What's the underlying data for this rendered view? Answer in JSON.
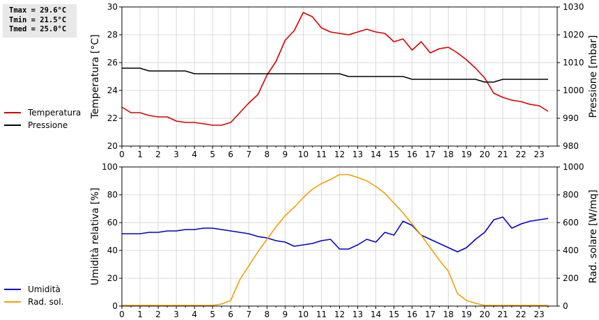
{
  "stats": {
    "tmax": "Tmax = 29.6°C",
    "tmin": "Tmin = 21.5°C",
    "tmed": "Tmed = 25.0°C"
  },
  "colors": {
    "temperature": "#d40000",
    "pressure": "#000000",
    "humidity": "#0000c8",
    "radiation": "#f0a000",
    "grid": "#d8d8d8"
  },
  "chart_data": [
    {
      "type": "line",
      "xlabel": "",
      "x_ticks": [
        "0",
        "1",
        "2",
        "3",
        "4",
        "5",
        "6",
        "7",
        "8",
        "9",
        "10",
        "11",
        "12",
        "13",
        "14",
        "15",
        "16",
        "17",
        "18",
        "19",
        "20",
        "21",
        "22",
        "23"
      ],
      "xlim": [
        0,
        24
      ],
      "y_left": {
        "label": "Temperatura [°C]",
        "lim": [
          20,
          30
        ],
        "ticks": [
          "20",
          "22",
          "24",
          "26",
          "28",
          "30"
        ]
      },
      "y_right": {
        "label": "Pressione [mbar]",
        "lim": [
          980,
          1030
        ],
        "ticks": [
          "980",
          "990",
          "1000",
          "1010",
          "1020",
          "1030"
        ]
      },
      "grid": true,
      "legend_position": "left",
      "series": [
        {
          "name": "Temperatura",
          "axis": "left",
          "color": "#d40000",
          "x": [
            0,
            0.5,
            1,
            1.5,
            2,
            2.5,
            3,
            3.5,
            4,
            4.5,
            5,
            5.5,
            6,
            6.5,
            7,
            7.5,
            8,
            8.5,
            9,
            9.5,
            10,
            10.5,
            11,
            11.5,
            12,
            12.5,
            13,
            13.5,
            14,
            14.5,
            15,
            15.5,
            16,
            16.5,
            17,
            17.5,
            18,
            18.5,
            19,
            19.5,
            20,
            20.5,
            21,
            21.5,
            22,
            22.5,
            23,
            23.5
          ],
          "y": [
            22.8,
            22.4,
            22.4,
            22.2,
            22.1,
            22.1,
            21.8,
            21.7,
            21.7,
            21.6,
            21.5,
            21.5,
            21.7,
            22.4,
            23.1,
            23.7,
            25.1,
            26.1,
            27.6,
            28.3,
            29.6,
            29.3,
            28.5,
            28.2,
            28.1,
            28.0,
            28.2,
            28.4,
            28.2,
            28.1,
            27.5,
            27.7,
            26.9,
            27.5,
            26.7,
            27.0,
            27.1,
            26.7,
            26.2,
            25.6,
            24.9,
            23.8,
            23.5,
            23.3,
            23.2,
            23.0,
            22.9,
            22.5
          ]
        },
        {
          "name": "Pressione",
          "axis": "right",
          "color": "#000000",
          "x": [
            0,
            1,
            1.5,
            2,
            3,
            3.5,
            4,
            5,
            6,
            7,
            8,
            9,
            10,
            11,
            12,
            12.5,
            13,
            14,
            15,
            15.5,
            16,
            17,
            18,
            19,
            19.5,
            20,
            20.5,
            21,
            22,
            23,
            23.5
          ],
          "y": [
            1008,
            1008,
            1007,
            1007,
            1007,
            1007,
            1006,
            1006,
            1006,
            1006,
            1006,
            1006,
            1006,
            1006,
            1006,
            1005,
            1005,
            1005,
            1005,
            1005,
            1004,
            1004,
            1004,
            1004,
            1004,
            1003,
            1003,
            1004,
            1004,
            1004,
            1004
          ]
        }
      ]
    },
    {
      "type": "line",
      "xlabel": "",
      "x_ticks": [
        "0",
        "1",
        "2",
        "3",
        "4",
        "5",
        "6",
        "7",
        "8",
        "9",
        "10",
        "11",
        "12",
        "13",
        "14",
        "15",
        "16",
        "17",
        "18",
        "19",
        "20",
        "21",
        "22",
        "23"
      ],
      "xlim": [
        0,
        24
      ],
      "y_left": {
        "label": "Umidità relativa [%]",
        "lim": [
          0,
          100
        ],
        "ticks": [
          "0",
          "20",
          "40",
          "60",
          "80",
          "100"
        ]
      },
      "y_right": {
        "label": "Rad. solare [W/mq]",
        "lim": [
          0,
          1000
        ],
        "ticks": [
          "0",
          "200",
          "400",
          "600",
          "800",
          "1000"
        ]
      },
      "grid": true,
      "legend_position": "left",
      "series": [
        {
          "name": "Umidità",
          "axis": "left",
          "color": "#0000c8",
          "x": [
            0,
            0.5,
            1,
            1.5,
            2,
            2.5,
            3,
            3.5,
            4,
            4.5,
            5,
            5.5,
            6,
            6.5,
            7,
            7.5,
            8,
            8.5,
            9,
            9.5,
            10,
            10.5,
            11,
            11.5,
            12,
            12.5,
            13,
            13.5,
            14,
            14.5,
            15,
            15.5,
            16,
            16.5,
            17,
            17.5,
            18,
            18.5,
            19,
            19.5,
            20,
            20.5,
            21,
            21.5,
            22,
            22.5,
            23,
            23.5
          ],
          "y": [
            52,
            52,
            52,
            53,
            53,
            54,
            54,
            55,
            55,
            56,
            56,
            55,
            54,
            53,
            52,
            50,
            49,
            47,
            46,
            43,
            44,
            45,
            47,
            48,
            41,
            41,
            44,
            48,
            46,
            53,
            51,
            61,
            58,
            51,
            48,
            45,
            42,
            39,
            42,
            48,
            53,
            62,
            64,
            56,
            59,
            61,
            62,
            63
          ]
        },
        {
          "name": "Rad. sol.",
          "axis": "right",
          "color": "#f0a000",
          "x": [
            0,
            1,
            2,
            3,
            4,
            5,
            5.5,
            6,
            6.5,
            7,
            7.5,
            8,
            8.5,
            9,
            9.5,
            10,
            10.5,
            11,
            11.5,
            12,
            12.5,
            13,
            13.5,
            14,
            14.5,
            15,
            15.5,
            16,
            16.5,
            17,
            17.5,
            18,
            18.5,
            19,
            19.5,
            20,
            21,
            22,
            23,
            23.5
          ],
          "y": [
            5,
            5,
            5,
            5,
            5,
            5,
            15,
            40,
            190,
            290,
            390,
            480,
            570,
            650,
            710,
            780,
            840,
            880,
            910,
            945,
            945,
            925,
            900,
            860,
            810,
            740,
            670,
            590,
            510,
            420,
            330,
            250,
            90,
            40,
            20,
            5,
            5,
            5,
            5,
            5
          ]
        }
      ]
    }
  ]
}
